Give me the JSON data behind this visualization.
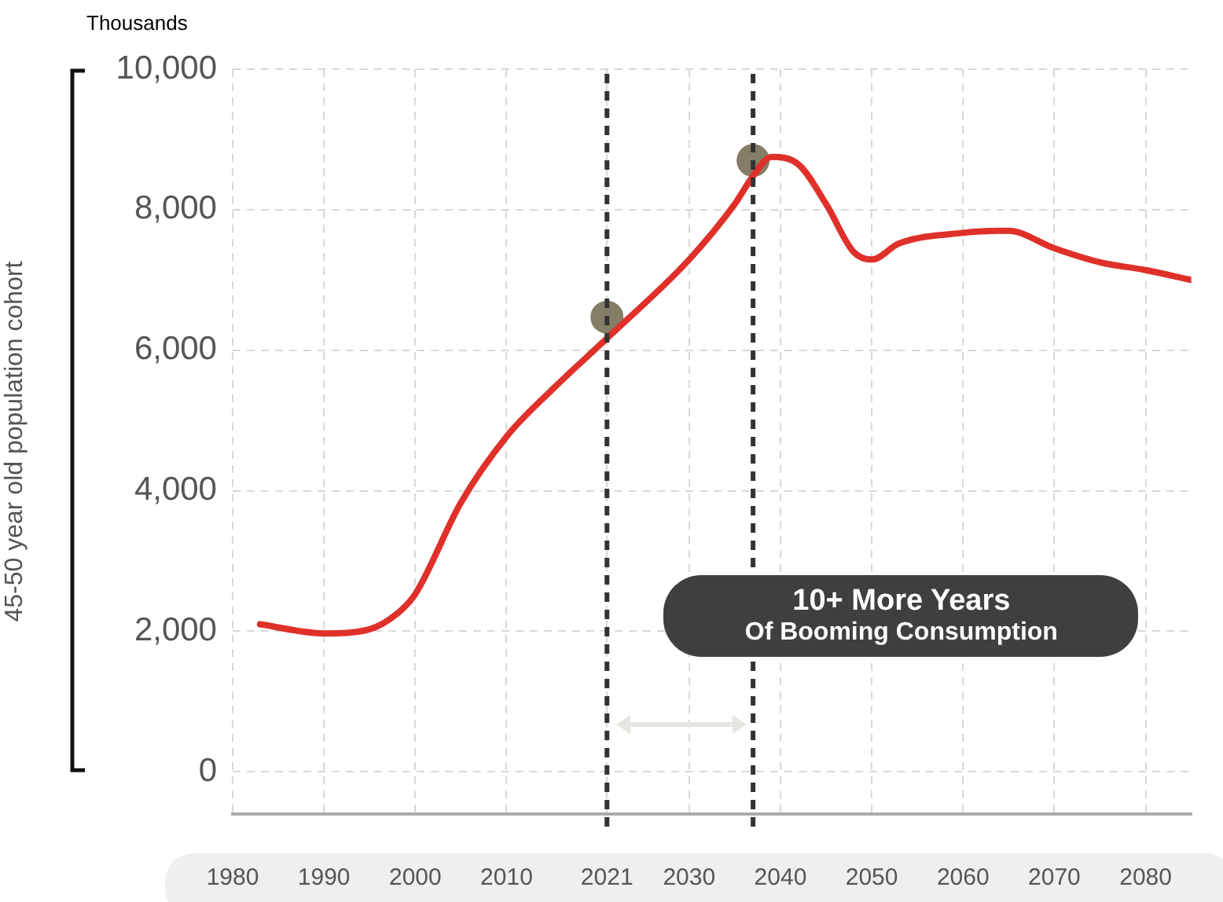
{
  "chart_data": {
    "type": "line",
    "ylabel": "45-50 year old population cohort",
    "annotations": [
      "Thousands",
      "10+ More Years",
      "Of Booming Consumption"
    ],
    "xlim": [
      1980,
      2085
    ],
    "xticks": [
      1980,
      1990,
      2000,
      2010,
      2021,
      2030,
      2040,
      2050,
      2060,
      2070,
      2080
    ],
    "ylim": [
      -600,
      10000
    ],
    "yticks": [
      0,
      {
        "value": 2000,
        "label": "2,000"
      },
      {
        "value": 4000,
        "label": "4,000"
      },
      {
        "value": 6000,
        "label": "6,000"
      },
      {
        "value": 8000,
        "label": "8,000"
      },
      {
        "value": 10000,
        "label": "10,000"
      }
    ],
    "grid": true,
    "legend": false,
    "series": [
      {
        "color": "#e0302a",
        "marker": "none",
        "x": [
          1983,
          1990,
          1995,
          1998,
          2000,
          2005,
          2010,
          2015,
          2021,
          2030,
          2035,
          2037,
          2039,
          2042,
          2045,
          2048,
          2050,
          2053,
          2060,
          2065,
          2070,
          2075,
          2080,
          2085
        ],
        "values": [
          2100,
          1970,
          2030,
          2250,
          2530,
          3830,
          4770,
          5440,
          6170,
          7290,
          8080,
          8480,
          8750,
          8640,
          8080,
          7400,
          7290,
          7520,
          7670,
          7700,
          7450,
          7250,
          7140,
          7000
        ]
      },
      {
        "type": "scatter",
        "color": "#857e66",
        "marker": "circle",
        "x": [
          2021,
          2037
        ],
        "values": [
          6470,
          8700
        ]
      }
    ],
    "ref_lines": [
      {
        "axis": "x",
        "value": 2021,
        "color": "#333333",
        "line_style": "dashed"
      },
      {
        "axis": "x",
        "value": 2037,
        "color": "#333333",
        "line_style": "dashed"
      }
    ]
  }
}
